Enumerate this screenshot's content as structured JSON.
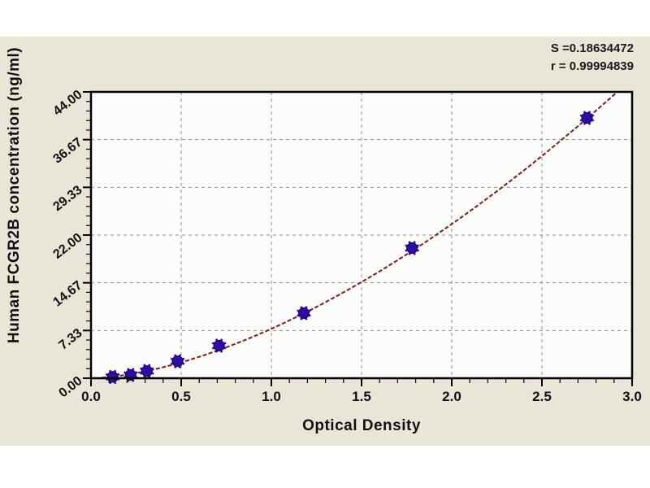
{
  "figure": {
    "background": "#ffffff",
    "panel_background": "#e9e6d8"
  },
  "chart_data": {
    "type": "scatter",
    "title": "",
    "xlabel": "Optical Density",
    "ylabel": "Human FCGR2B concentration (ng/ml)",
    "xlim": [
      0.0,
      3.0
    ],
    "ylim": [
      0.0,
      44.0
    ],
    "x_major_ticks": [
      0.0,
      0.5,
      1.0,
      1.5,
      2.0,
      2.5,
      3.0
    ],
    "x_tick_labels": [
      "0.0",
      "0.5",
      "1.0",
      "1.5",
      "2.0",
      "2.5",
      "3.0"
    ],
    "x_minor_step": 0.1,
    "y_major_ticks": [
      0.0,
      7.333,
      14.667,
      22.0,
      29.333,
      36.667,
      44.0
    ],
    "y_tick_labels": [
      "0.00",
      "7.33",
      "14.67",
      "22.00",
      "29.33",
      "36.67",
      "44.00"
    ],
    "y_minor_divisions": 5,
    "grid": {
      "style": "dashed",
      "on": true
    },
    "stats": {
      "s_label": "S =0.18634472",
      "r_label": "r = 0.99994839"
    },
    "points": [
      {
        "x": 0.12,
        "y": 0.2
      },
      {
        "x": 0.22,
        "y": 0.5
      },
      {
        "x": 0.31,
        "y": 1.1
      },
      {
        "x": 0.48,
        "y": 2.6
      },
      {
        "x": 0.71,
        "y": 5.0
      },
      {
        "x": 1.18,
        "y": 10.0
      },
      {
        "x": 1.78,
        "y": 20.0
      },
      {
        "x": 2.75,
        "y": 40.0
      }
    ],
    "curve_fit": {
      "model": "power",
      "a": 7.6,
      "b": 1.64,
      "x_start": 0.06,
      "x_end": 3.0
    },
    "colors": {
      "curve": "#7a1c20",
      "marker_fill": "#2e0ea6",
      "marker_edge": "#1c065f",
      "grid": "#8f8f8f",
      "plot_bg": "#fcfcfa",
      "axis": "#000000"
    }
  }
}
